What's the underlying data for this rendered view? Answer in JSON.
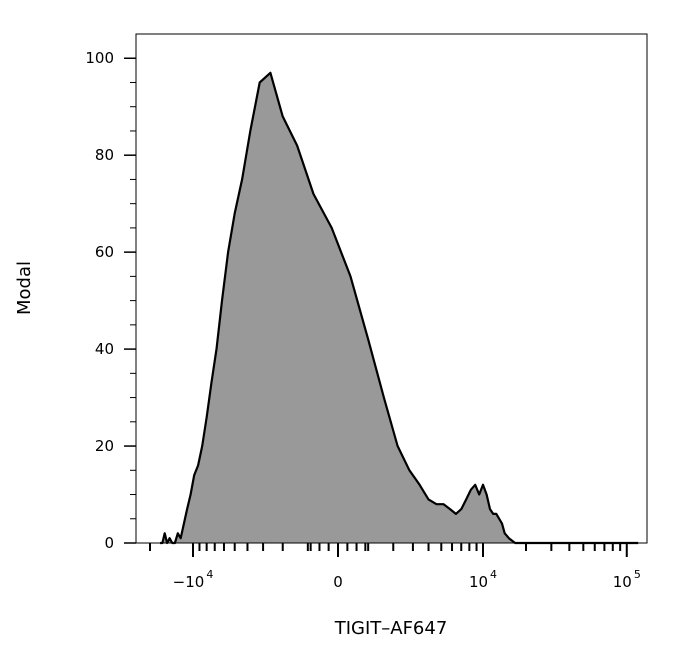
{
  "chart_data": {
    "type": "area",
    "title": "",
    "xlabel": "TIGIT–AF647",
    "ylabel": "Modal",
    "x_scale": "biexponential",
    "xlim": [
      -17000,
      120000
    ],
    "ylim": [
      0,
      105
    ],
    "grid": false,
    "fill_color": "#999999",
    "line_color": "#000000",
    "y_ticks": [
      {
        "value": 0,
        "label": "0"
      },
      {
        "value": 20,
        "label": "20"
      },
      {
        "value": 40,
        "label": "40"
      },
      {
        "value": 60,
        "label": "60"
      },
      {
        "value": 80,
        "label": "80"
      },
      {
        "value": 100,
        "label": "100"
      }
    ],
    "x_ticks": [
      {
        "value": -10000,
        "base": "−10",
        "exp": "4"
      },
      {
        "value": 0,
        "base": "0",
        "exp": ""
      },
      {
        "value": 10000,
        "base": "10",
        "exp": "4"
      },
      {
        "value": 100000,
        "base": "10",
        "exp": "5"
      }
    ],
    "series": [
      {
        "x": [
          -17000,
          -16400,
          -15800,
          -15200,
          -14600,
          -14000,
          -13400,
          -12800,
          -12200,
          -11600,
          -11000,
          -10400,
          -9800,
          -9200,
          -8600,
          -8000,
          -7400,
          -6800,
          -6200,
          -5600,
          -5000,
          -4400,
          -3800,
          -3200,
          -2600,
          -2000,
          -1400,
          -800,
          -200,
          400,
          1000,
          1600,
          2200,
          2800,
          3400,
          4000,
          4600,
          5200,
          5800,
          6400,
          7000,
          7600,
          8200,
          8800,
          9400,
          10000,
          10600,
          11200,
          11800,
          12400,
          13000,
          13600,
          14200,
          15200,
          16800,
          18500,
          21000,
          23000,
          25000,
          30000,
          40000,
          60000,
          90000,
          120000
        ],
        "y": [
          0,
          0,
          2,
          0,
          1,
          0,
          0,
          2,
          1,
          4,
          7,
          10,
          14,
          16,
          20,
          26,
          33,
          40,
          50,
          60,
          68,
          75,
          85,
          95,
          97,
          88,
          82,
          72,
          65,
          55,
          42,
          30,
          20,
          15,
          12,
          9,
          8,
          8,
          7,
          6,
          7,
          9,
          11,
          12,
          10,
          12,
          10,
          7,
          6,
          6,
          5,
          4,
          2,
          1,
          0,
          0,
          0,
          0,
          0,
          0,
          0,
          0,
          0,
          0
        ]
      }
    ]
  }
}
